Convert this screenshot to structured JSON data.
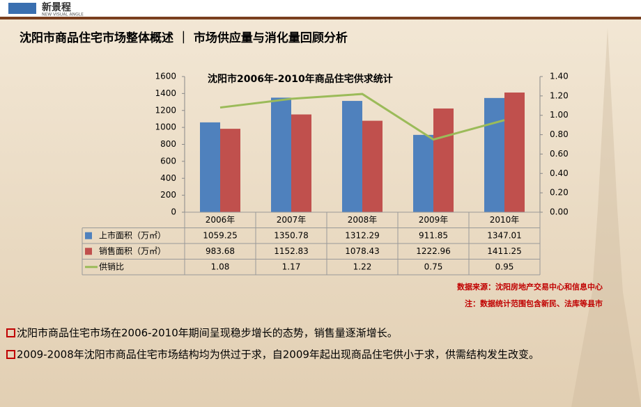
{
  "header": {
    "logo": "新景程",
    "logo_sub": "NEW VISUAL ANGLE",
    "title": "沈阳市商品住宅市场整体概述 ｜ 市场供应量与消化量回顾分析"
  },
  "chart_data": {
    "type": "bar_line",
    "title": "沈阳市2006年-2010年商品住宅供求统计",
    "categories": [
      "2006年",
      "2007年",
      "2008年",
      "2009年",
      "2010年"
    ],
    "series": [
      {
        "name": "上市面积（万㎡）",
        "color": "#4f81bd",
        "type": "bar",
        "values": [
          1059.25,
          1350.78,
          1312.29,
          911.85,
          1347.01
        ]
      },
      {
        "name": "销售面积（万㎡）",
        "color": "#c0504d",
        "type": "bar",
        "values": [
          983.68,
          1152.83,
          1078.43,
          1222.96,
          1411.25
        ]
      },
      {
        "name": "供销比",
        "color": "#9bbb59",
        "type": "line",
        "axis": "y2",
        "values": [
          1.08,
          1.17,
          1.22,
          0.75,
          0.95
        ]
      }
    ],
    "ylim": [
      0,
      1600
    ],
    "yticks": [
      0,
      200,
      400,
      600,
      800,
      1000,
      1200,
      1400,
      1600
    ],
    "y2lim": [
      0,
      1.4
    ],
    "y2ticks": [
      {
        "value": 0,
        "label": "0.00"
      },
      {
        "value": 0.2,
        "label": "0.20"
      },
      {
        "value": 0.4,
        "label": "0.40"
      },
      {
        "value": 0.6,
        "label": "0.60"
      },
      {
        "value": 0.8,
        "label": "0.80"
      },
      {
        "value": 1.0,
        "label": "1.00"
      },
      {
        "value": 1.2,
        "label": "1.20"
      },
      {
        "value": 1.4,
        "label": "1.40"
      }
    ],
    "data_table": true
  },
  "notes": [
    "数据来源：沈阳房地产交易中心和信息中心",
    "注：数据统计范围包含新民、法库等县市"
  ],
  "bullets": [
    "沈阳市商品住宅市场在2006-2010年期间呈现稳步增长的态势，销售量逐渐增长。",
    "2009-2008年沈阳市商品住宅市场结构均为供过于求，自2009年起出现商品住宅供小于求，供需结构发生改变。"
  ]
}
